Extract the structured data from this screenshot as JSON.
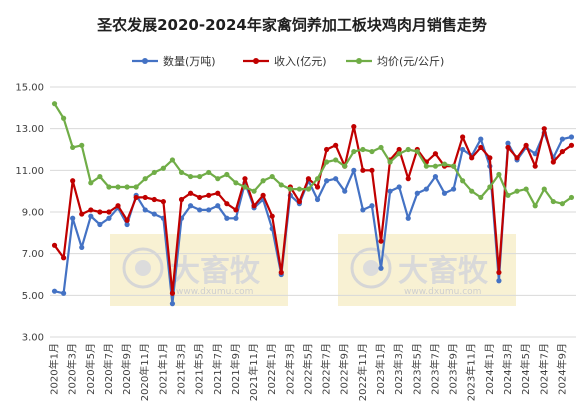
{
  "chart_data": {
    "type": "line",
    "title": "圣农发展2020-2024年家禽饲养加工板块鸡肉月销售走势",
    "ylim": [
      3,
      15
    ],
    "yticks": [
      "3.00",
      "5.00",
      "7.00",
      "9.00",
      "11.00",
      "13.00",
      "15.00"
    ],
    "grid": true,
    "legend_position": "top",
    "watermark": {
      "brand": "大畜牧",
      "url": "www.dxumu.com"
    },
    "x": [
      "2020年1月",
      "2020年2月",
      "2020年3月",
      "2020年4月",
      "2020年5月",
      "2020年6月",
      "2020年7月",
      "2020年8月",
      "2020年9月",
      "2020年10月",
      "2020年11月",
      "2020年12月",
      "2021年1月",
      "2021年2月",
      "2021年3月",
      "2021年4月",
      "2021年5月",
      "2021年6月",
      "2021年7月",
      "2021年8月",
      "2021年9月",
      "2021年10月",
      "2021年11月",
      "2021年12月",
      "2022年1月",
      "2022年2月",
      "2022年3月",
      "2022年4月",
      "2022年5月",
      "2022年6月",
      "2022年7月",
      "2022年8月",
      "2022年9月",
      "2022年10月",
      "2022年11月",
      "2022年12月",
      "2023年1月",
      "2023年2月",
      "2023年3月",
      "2023年4月",
      "2023年5月",
      "2023年6月",
      "2023年7月",
      "2023年8月",
      "2023年9月",
      "2023年10月",
      "2023年11月",
      "2023年12月",
      "2024年1月",
      "2024年2月",
      "2024年3月",
      "2024年4月",
      "2024年5月",
      "2024年6月",
      "2024年7月",
      "2024年8月",
      "2024年9月",
      "2024年10月"
    ],
    "x_tick_labels": [
      "2020年1月",
      "2020年3月",
      "2020年5月",
      "2020年7月",
      "2020年9月",
      "2020年11月",
      "2021年1月",
      "2021年3月",
      "2021年5月",
      "2021年7月",
      "2021年9月",
      "2021年11月",
      "2022年1月",
      "2022年3月",
      "2022年5月",
      "2022年7月",
      "2022年9月",
      "2022年11月",
      "2023年1月",
      "2023年3月",
      "2023年5月",
      "2023年7月",
      "2023年9月",
      "2023年11月",
      "2024年1月",
      "2024年3月",
      "2024年5月",
      "2024年7月",
      "2024年9月"
    ],
    "series": [
      {
        "name": "数量(万吨)",
        "color": "#4472c4",
        "values": [
          5.2,
          5.1,
          8.7,
          7.3,
          8.8,
          8.4,
          8.7,
          9.2,
          8.4,
          9.8,
          9.1,
          8.9,
          8.7,
          4.6,
          8.7,
          9.3,
          9.1,
          9.1,
          9.3,
          8.7,
          8.7,
          10.4,
          9.2,
          9.6,
          8.2,
          6.0,
          9.8,
          9.4,
          10.5,
          9.6,
          10.5,
          10.6,
          10.0,
          11.0,
          9.1,
          9.3,
          6.3,
          10.0,
          10.2,
          8.7,
          9.9,
          10.1,
          10.7,
          9.9,
          10.1,
          12.0,
          11.7,
          12.5,
          11.2,
          5.7,
          12.3,
          11.5,
          12.1,
          11.8,
          12.8,
          11.6,
          12.5,
          12.6
        ]
      },
      {
        "name": "收入(亿元)",
        "color": "#c00000",
        "values": [
          7.4,
          6.8,
          10.5,
          8.9,
          9.1,
          9.0,
          9.0,
          9.3,
          8.6,
          9.7,
          9.7,
          9.6,
          9.5,
          5.1,
          9.6,
          9.9,
          9.7,
          9.8,
          9.9,
          9.4,
          9.1,
          10.6,
          9.3,
          9.8,
          8.8,
          6.1,
          10.2,
          9.5,
          10.6,
          10.2,
          12.0,
          12.2,
          11.2,
          13.1,
          11.0,
          11.0,
          7.6,
          11.5,
          12.0,
          10.6,
          12.0,
          11.4,
          11.8,
          11.2,
          11.2,
          12.6,
          11.6,
          12.1,
          11.6,
          6.1,
          12.1,
          11.6,
          12.2,
          11.2,
          13.0,
          11.4,
          11.9,
          12.2
        ]
      },
      {
        "name": "均价(元/公斤)",
        "color": "#70ad47",
        "values": [
          14.2,
          13.5,
          12.1,
          12.2,
          10.4,
          10.7,
          10.2,
          10.2,
          10.2,
          10.2,
          10.6,
          10.9,
          11.1,
          11.5,
          10.9,
          10.7,
          10.7,
          10.9,
          10.6,
          10.8,
          10.4,
          10.2,
          10.0,
          10.5,
          10.7,
          10.3,
          10.1,
          10.1,
          10.1,
          10.6,
          11.4,
          11.5,
          11.2,
          11.9,
          12.0,
          11.9,
          12.1,
          11.4,
          11.8,
          12.0,
          11.9,
          11.2,
          11.2,
          11.3,
          11.2,
          10.5,
          10.0,
          9.7,
          10.2,
          10.8,
          9.8,
          10.0,
          10.1,
          9.3,
          10.1,
          9.5,
          9.4,
          9.7
        ]
      }
    ]
  }
}
